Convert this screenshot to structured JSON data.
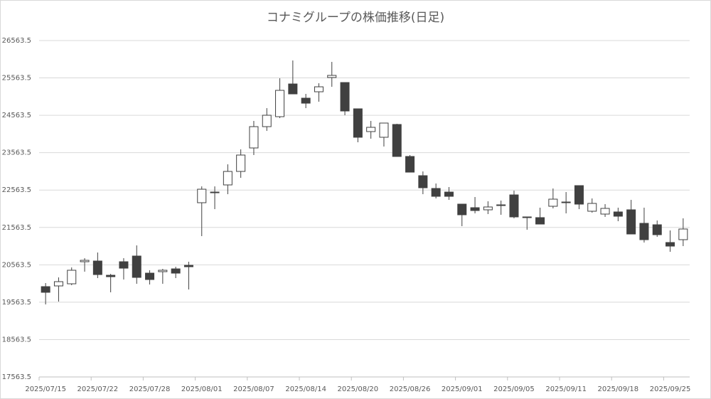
{
  "chart_data": {
    "type": "candlestick",
    "title": "コナミグループの株価推移(日足)",
    "categories": [
      "2025/07/15",
      null,
      null,
      null,
      "2025/07/22",
      null,
      null,
      null,
      "2025/07/28",
      null,
      null,
      null,
      "2025/08/01",
      null,
      null,
      null,
      "2025/08/07",
      null,
      null,
      null,
      "2025/08/14",
      null,
      null,
      null,
      "2025/08/20",
      null,
      null,
      null,
      "2025/08/26",
      null,
      null,
      null,
      "2025/09/01",
      null,
      null,
      null,
      "2025/09/05",
      null,
      null,
      null,
      "2025/09/11",
      null,
      null,
      null,
      "2025/09/18",
      null,
      null,
      null,
      "2025/09/25",
      null
    ],
    "open": [
      19980,
      19999,
      20056,
      20646,
      20665,
      20284,
      20646,
      20798,
      20341,
      20380,
      20455,
      20550,
      22225,
      22510,
      22701,
      23062,
      23690,
      24260,
      24527,
      25402,
      25022,
      25193,
      25574,
      25440,
      24737,
      24128,
      23976,
      24318,
      23462,
      22948,
      22606,
      22510,
      22187,
      22092,
      22035,
      22168,
      22434,
      21845,
      21826,
      22130,
      22244,
      22682,
      21997,
      21921,
      21978,
      22035,
      21673,
      21635,
      21160,
      21236
    ],
    "high": [
      20075,
      20227,
      20494,
      20741,
      20893,
      20322,
      20741,
      21083,
      20418,
      20455,
      20512,
      20646,
      22662,
      22662,
      23252,
      23652,
      24413,
      24755,
      25554,
      26030,
      25136,
      25421,
      25992,
      25440,
      24737,
      24413,
      24356,
      24337,
      23500,
      23062,
      22739,
      22644,
      22187,
      22377,
      22263,
      22282,
      22548,
      21845,
      22092,
      22606,
      22510,
      22682,
      22339,
      22187,
      22092,
      22301,
      22092,
      21749,
      21483,
      21807
    ],
    "low": [
      19504,
      19580,
      20018,
      20380,
      20208,
      19828,
      20170,
      20056,
      20037,
      20056,
      20208,
      19904,
      21331,
      22053,
      22453,
      22891,
      23500,
      24146,
      24489,
      25136,
      24755,
      24927,
      25326,
      24565,
      23842,
      23938,
      23728,
      23462,
      23043,
      22453,
      22339,
      22301,
      21597,
      21940,
      21921,
      21902,
      21807,
      21502,
      21654,
      22073,
      21940,
      22053,
      21959,
      21845,
      21730,
      21388,
      21160,
      21312,
      20912,
      21064
    ],
    "close": [
      19828,
      20113,
      20418,
      20684,
      20303,
      20246,
      20474,
      20227,
      20170,
      20418,
      20341,
      20512,
      22586,
      22491,
      23062,
      23500,
      24260,
      24565,
      25231,
      25136,
      24888,
      25326,
      25631,
      24679,
      23976,
      24242,
      24356,
      23462,
      23043,
      22625,
      22396,
      22396,
      21902,
      22016,
      22111,
      22149,
      21845,
      21826,
      21654,
      22320,
      22225,
      22187,
      22206,
      22073,
      21864,
      21388,
      21236,
      21369,
      21064,
      21521
    ],
    "up_color": "#ffffff",
    "down_color": "#404040",
    "ylim": [
      17563.5,
      26563.5
    ],
    "yticks": [
      17563.5,
      18563.5,
      19563.5,
      20563.5,
      21563.5,
      22563.5,
      23563.5,
      24563.5,
      25563.5,
      26563.5
    ],
    "grid": true
  }
}
